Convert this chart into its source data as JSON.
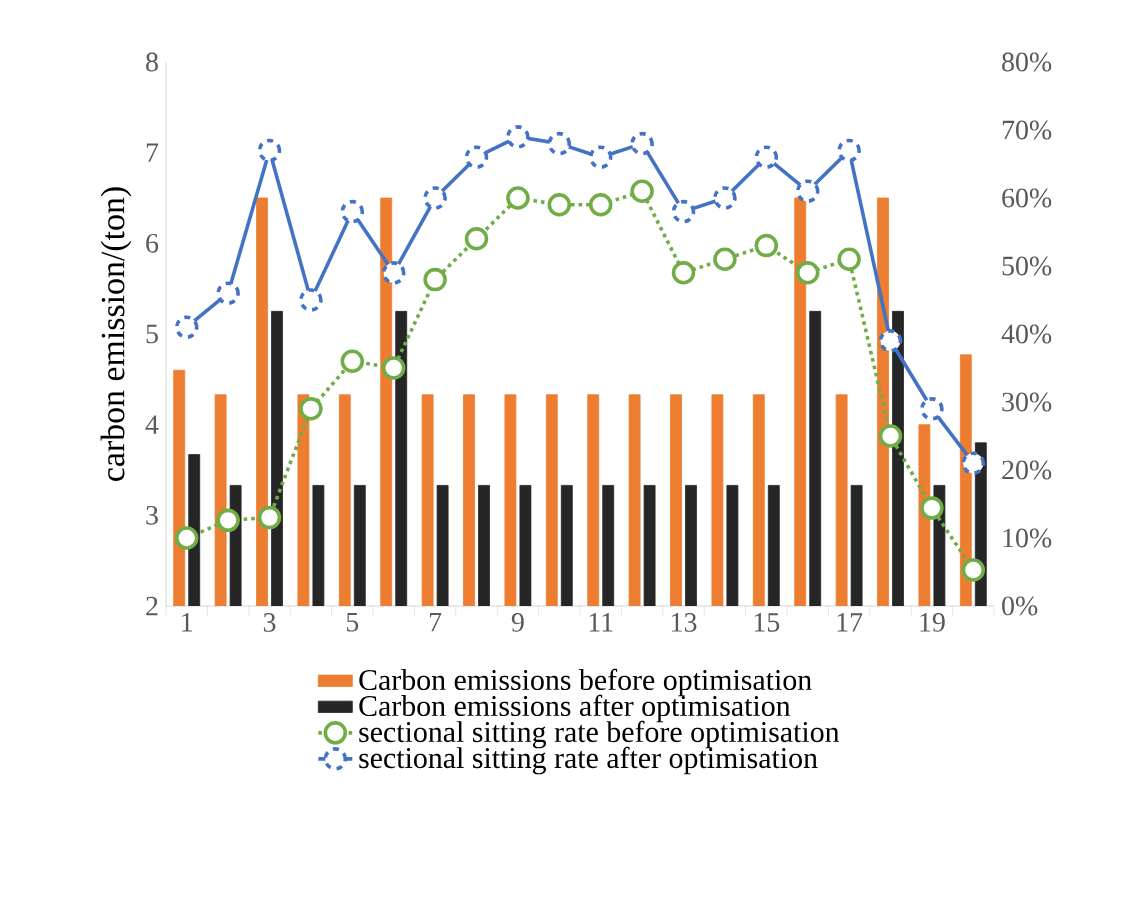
{
  "chart_data": {
    "type": "bar",
    "ylabel": "carbon emission/(ton)",
    "categories": [
      "1",
      null,
      "3",
      null,
      "5",
      null,
      "7",
      null,
      "9",
      null,
      "11",
      null,
      "13",
      null,
      "15",
      null,
      "17",
      null,
      "19",
      null
    ],
    "series": [
      {
        "name": "Carbon emissions before optimisation",
        "color": "#ed7d31",
        "values": [
          4.6,
          4.33,
          6.5,
          4.33,
          4.33,
          6.5,
          4.33,
          4.33,
          4.33,
          4.33,
          4.33,
          4.33,
          4.33,
          4.33,
          4.33,
          6.5,
          4.33,
          6.5,
          4.0,
          4.77
        ]
      },
      {
        "name": "Carbon emissions after optimisation",
        "color": "#262626",
        "values": [
          3.67,
          3.33,
          5.25,
          3.33,
          3.33,
          5.25,
          3.33,
          3.33,
          3.33,
          3.33,
          3.33,
          3.33,
          3.33,
          3.33,
          3.33,
          5.25,
          3.33,
          5.25,
          3.33,
          3.8
        ]
      },
      {
        "name": "sectional sitting rate before optimisation",
        "type": "line",
        "axis": "y2",
        "line_style": "dotted",
        "color": "#70ad47",
        "values": [
          10,
          12.6,
          13,
          29,
          36,
          35,
          48,
          54,
          60,
          59,
          59,
          61,
          49,
          51,
          53,
          49,
          51,
          25,
          14.4,
          5.3
        ]
      },
      {
        "name": "sectional sitting rate after optimisation",
        "type": "line",
        "axis": "y2",
        "line_style": "solid",
        "color": "#4472c4",
        "values": [
          41,
          46,
          67,
          45,
          58,
          49,
          60,
          66,
          69,
          68,
          66,
          68,
          58,
          60,
          66,
          61,
          67,
          39,
          29,
          21
        ]
      }
    ],
    "ylim": [
      2,
      8
    ],
    "yticks": [
      2,
      3,
      4,
      5,
      6,
      7,
      8
    ],
    "y2lim": [
      0,
      80
    ],
    "y2ticks": [
      {
        "value": 0,
        "label": "0%"
      },
      {
        "value": 10,
        "label": "10%"
      },
      {
        "value": 20,
        "label": "20%"
      },
      {
        "value": 30,
        "label": "30%"
      },
      {
        "value": 40,
        "label": "40%"
      },
      {
        "value": 50,
        "label": "50%"
      },
      {
        "value": 60,
        "label": "60%"
      },
      {
        "value": 70,
        "label": "70%"
      },
      {
        "value": 80,
        "label": "80%"
      }
    ],
    "marker": "circle",
    "legend": "bottom"
  }
}
